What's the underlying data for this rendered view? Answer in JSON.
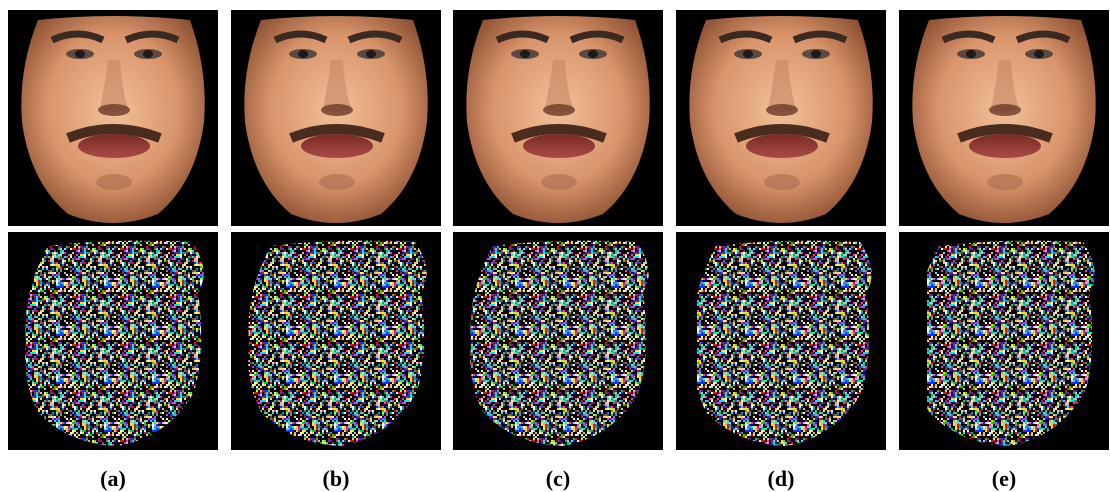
{
  "figure": {
    "panels": [
      {
        "label": "(a)"
      },
      {
        "label": "(b)"
      },
      {
        "label": "(c)"
      },
      {
        "label": "(d)"
      },
      {
        "label": "(e)"
      }
    ]
  }
}
